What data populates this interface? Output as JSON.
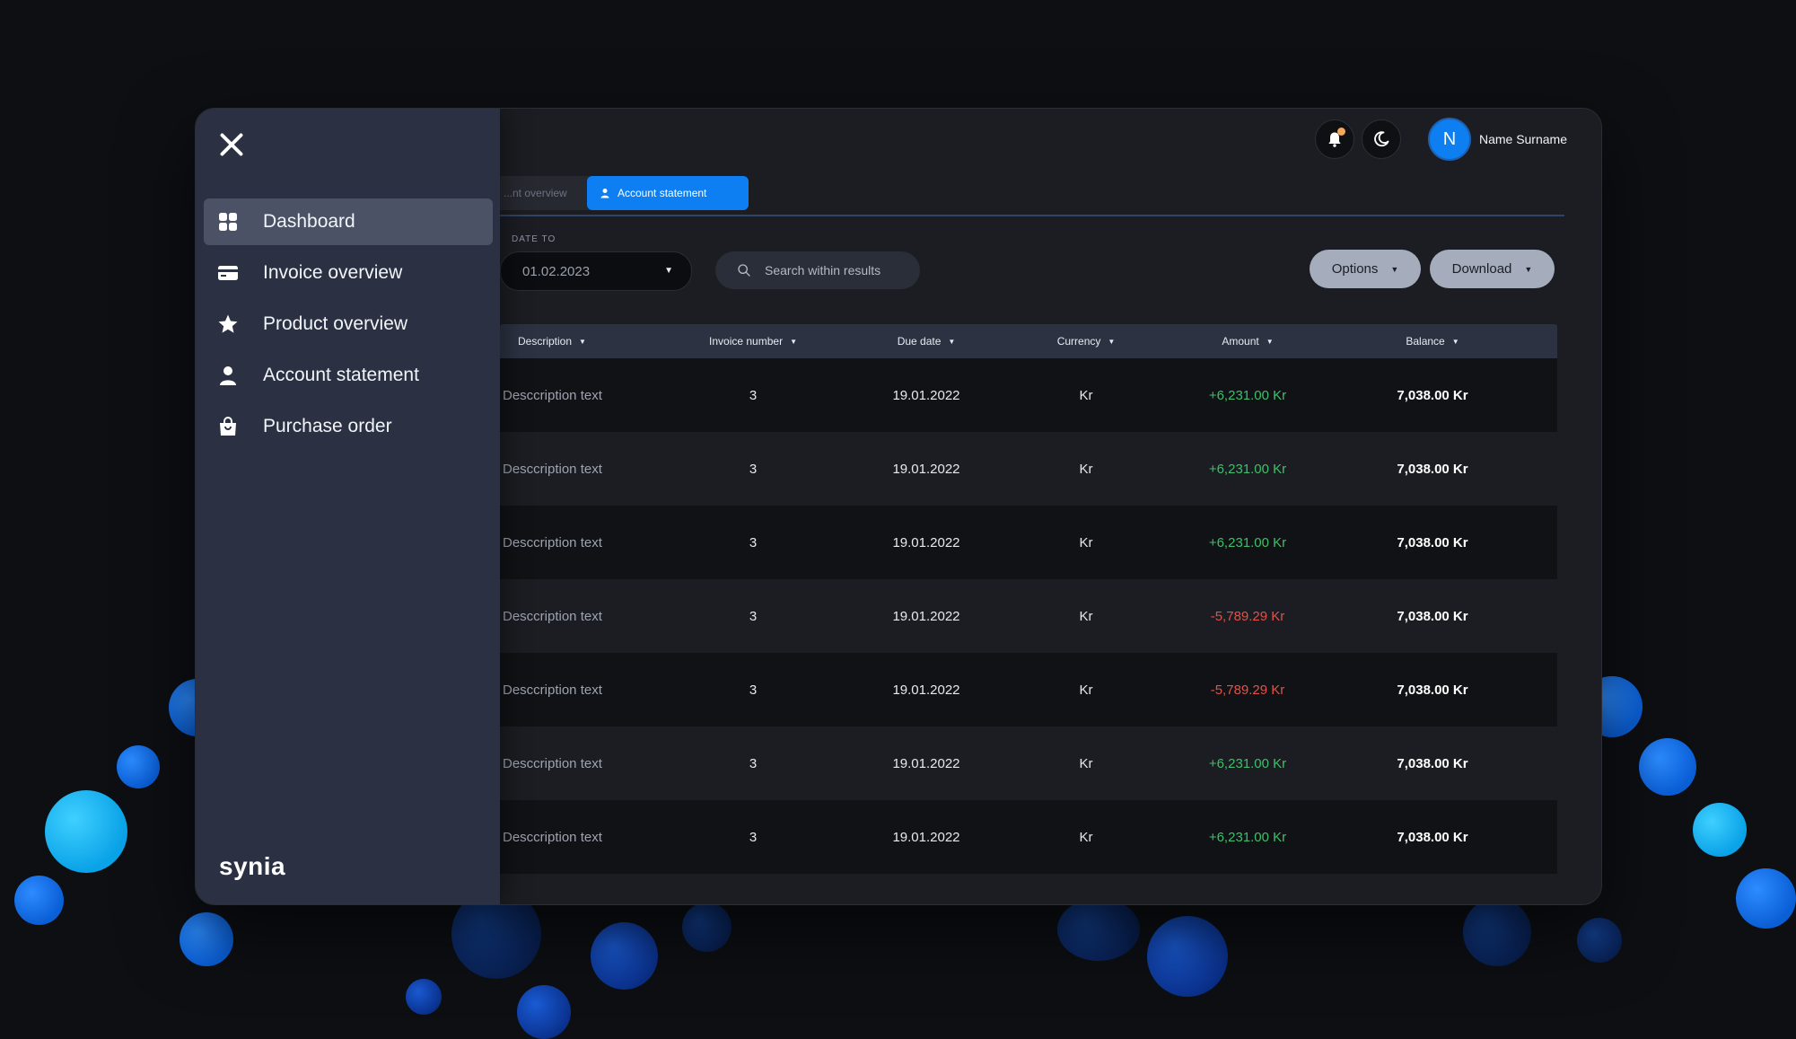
{
  "app": {
    "logo": "synia"
  },
  "sidebar": {
    "items": [
      {
        "label": "Dashboard",
        "icon": "dashboard-grid-icon",
        "active": true
      },
      {
        "label": "Invoice overview",
        "icon": "credit-card-icon",
        "active": false
      },
      {
        "label": "Product overview",
        "icon": "star-icon",
        "active": false
      },
      {
        "label": "Account statement",
        "icon": "user-icon",
        "active": false
      },
      {
        "label": "Purchase order",
        "icon": "shopping-bag-icon",
        "active": false
      }
    ]
  },
  "header": {
    "user_initial": "N",
    "user_name": "Name Surname",
    "notification_dot_color": "#f3a85b"
  },
  "tabs": [
    {
      "label": "...nt overview",
      "active": false
    },
    {
      "label": "Account statement",
      "active": true
    }
  ],
  "filters": {
    "date_to_label": "DATE TO",
    "date_to_value": "01.02.2023",
    "search_placeholder": "Search within results",
    "options_label": "Options",
    "download_label": "Download"
  },
  "table": {
    "columns": [
      "Description",
      "Invoice number",
      "Due date",
      "Currency",
      "Amount",
      "Balance"
    ],
    "rows": [
      {
        "description": "Desccription text",
        "invoice": "3",
        "due": "19.01.2022",
        "currency": "Kr",
        "amount": "+6,231.00  Kr",
        "sign": "pos",
        "balance": "7,038.00 Kr"
      },
      {
        "description": "Desccription text",
        "invoice": "3",
        "due": "19.01.2022",
        "currency": "Kr",
        "amount": "+6,231.00  Kr",
        "sign": "pos",
        "balance": "7,038.00 Kr"
      },
      {
        "description": "Desccription text",
        "invoice": "3",
        "due": "19.01.2022",
        "currency": "Kr",
        "amount": "+6,231.00  Kr",
        "sign": "pos",
        "balance": "7,038.00 Kr"
      },
      {
        "description": "Desccription text",
        "invoice": "3",
        "due": "19.01.2022",
        "currency": "Kr",
        "amount": "-5,789.29 Kr",
        "sign": "neg",
        "balance": "7,038.00 Kr"
      },
      {
        "description": "Desccription text",
        "invoice": "3",
        "due": "19.01.2022",
        "currency": "Kr",
        "amount": "-5,789.29 Kr",
        "sign": "neg",
        "balance": "7,038.00 Kr"
      },
      {
        "description": "Desccription text",
        "invoice": "3",
        "due": "19.01.2022",
        "currency": "Kr",
        "amount": "+6,231.00  Kr",
        "sign": "pos",
        "balance": "7,038.00 Kr"
      },
      {
        "description": "Desccription text",
        "invoice": "3",
        "due": "19.01.2022",
        "currency": "Kr",
        "amount": "+6,231.00  Kr",
        "sign": "pos",
        "balance": "7,038.00 Kr"
      }
    ]
  },
  "colors": {
    "accent": "#0e7ff2",
    "positive": "#3fbf6a",
    "negative": "#e0524a",
    "sidebar_bg": "#2b3142"
  }
}
